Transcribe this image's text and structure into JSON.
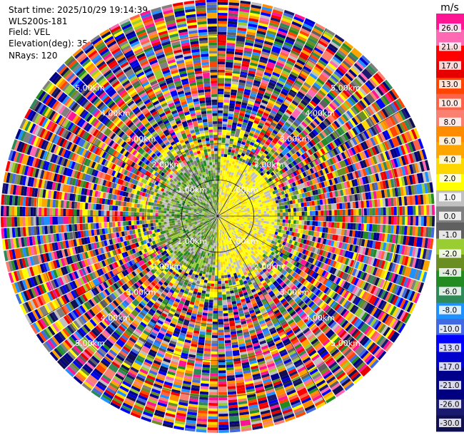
{
  "header": {
    "start_time": "Start time: 2025/10/29 19:14:39",
    "instrument": "WLS200s-181",
    "field": "Field: VEL",
    "elevation": "Elevation(deg): 35.00",
    "nrays": "NRays: 120"
  },
  "chart_data": {
    "type": "heatmap",
    "projection": "polar-ppi",
    "field": "VEL",
    "units": "m/s",
    "n_rays": 120,
    "elevation_deg": 35.0,
    "range_rings_km": [
      1.0,
      2.0,
      3.0,
      4.0,
      5.0
    ],
    "range_ring_labels": [
      "1.00km",
      "2.00km",
      "3.00km",
      "4.00km",
      "5.00km"
    ],
    "max_range_km": 6.0,
    "colorbar": {
      "label": "m/s",
      "ticks": [
        "26.0",
        "21.0",
        "17.0",
        "13.0",
        "10.0",
        "8.0",
        "6.0",
        "4.0",
        "2.0",
        "1.0",
        "0.0",
        "-1.0",
        "-2.0",
        "-4.0",
        "-6.0",
        "-8.0",
        "-10.0",
        "-13.0",
        "-17.0",
        "-21.0",
        "-26.0",
        "-30.0"
      ],
      "colors": [
        "#ff1493",
        "#ff69b4",
        "#ff0000",
        "#e60000",
        "#ff4500",
        "#ff6347",
        "#fa8072",
        "#ff8c00",
        "#ffa500",
        "#ffd700",
        "#ffff00",
        "#c0c0c0",
        "#808080",
        "#606060",
        "#9acd32",
        "#6b8e23",
        "#228b22",
        "#2e8b57",
        "#1e90ff",
        "#4169e1",
        "#0000ff",
        "#0000cd",
        "#00008b",
        "#000080",
        "#191970",
        "#101050"
      ]
    }
  }
}
